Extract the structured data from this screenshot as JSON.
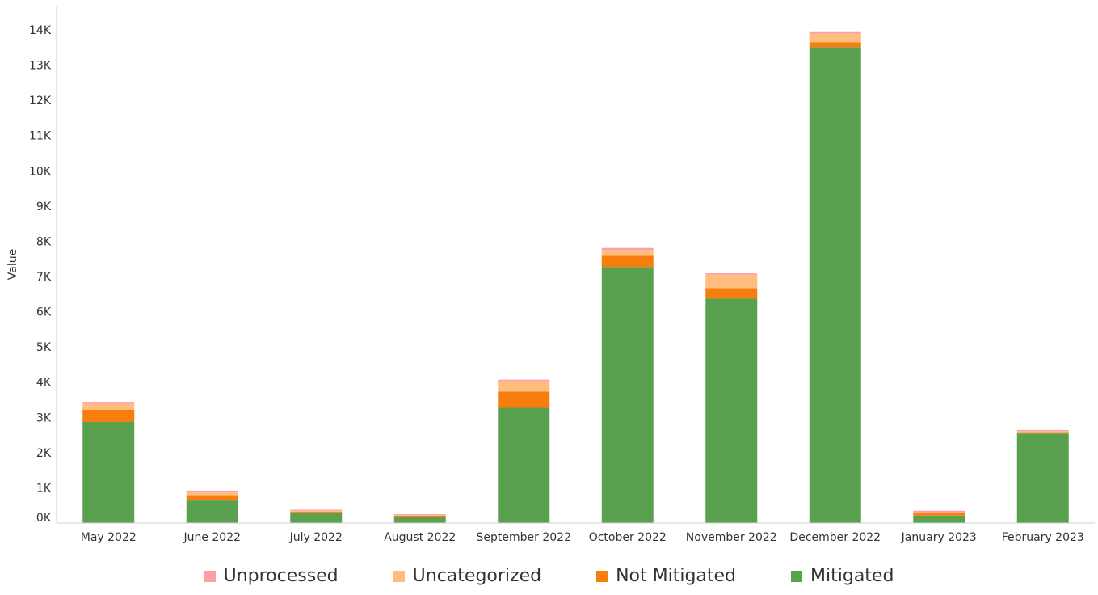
{
  "chart_data": {
    "type": "bar",
    "stacked": true,
    "title": "",
    "xlabel": "",
    "ylabel": "Value",
    "ylim": [
      0,
      14000
    ],
    "yticks": [
      "0K",
      "1K",
      "2K",
      "3K",
      "4K",
      "5K",
      "6K",
      "7K",
      "8K",
      "9K",
      "10K",
      "11K",
      "12K",
      "13K",
      "14K"
    ],
    "categories": [
      "May 2022",
      "June 2022",
      "July 2022",
      "August 2022",
      "September 2022",
      "October 2022",
      "November 2022",
      "December 2022",
      "January 2023",
      "February 2023"
    ],
    "series": [
      {
        "name": "Mitigated",
        "color": "#59a14f",
        "values": [
          2870,
          640,
          290,
          170,
          3270,
          7270,
          6370,
          13510,
          210,
          2540
        ]
      },
      {
        "name": "Not Mitigated",
        "color": "#f67d0e",
        "values": [
          350,
          150,
          30,
          40,
          460,
          320,
          300,
          140,
          70,
          40
        ]
      },
      {
        "name": "Uncategorized",
        "color": "#ffbe7d",
        "values": [
          160,
          80,
          30,
          20,
          300,
          160,
          380,
          240,
          30,
          30
        ]
      },
      {
        "name": "Unprocessed",
        "color": "#ff9da7",
        "values": [
          60,
          50,
          30,
          20,
          40,
          60,
          40,
          70,
          40,
          30
        ]
      }
    ],
    "legend": {
      "position": "bottom",
      "order": [
        "Unprocessed",
        "Uncategorized",
        "Not Mitigated",
        "Mitigated"
      ]
    },
    "grid": false
  }
}
